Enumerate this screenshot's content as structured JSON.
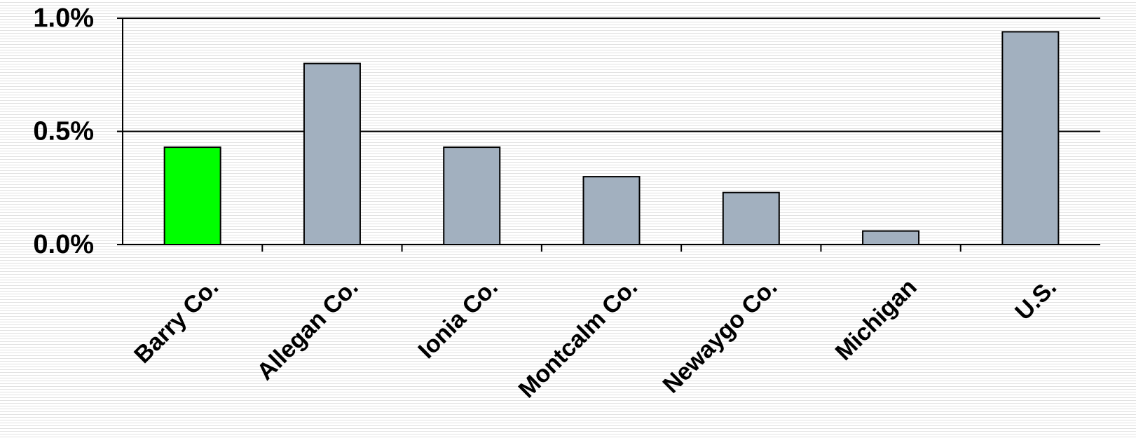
{
  "chart_data": {
    "type": "bar",
    "title": "",
    "xlabel": "",
    "ylabel": "",
    "categories": [
      "Barry Co.",
      "Allegan Co.",
      "Ionia Co.",
      "Montcalm Co.",
      "Newaygo Co.",
      "Michigan",
      "U.S."
    ],
    "values": [
      0.43,
      0.8,
      0.43,
      0.3,
      0.23,
      0.06,
      0.94
    ],
    "ylim": [
      0,
      1.0
    ],
    "yticks": [
      0.0,
      0.5,
      1.0
    ],
    "ytick_labels": [
      "0.0%",
      "0.5%",
      "1.0%"
    ],
    "value_unit": "%",
    "grid": true,
    "legend": "none",
    "colors": {
      "highlight": "#00ff00",
      "default": "#a2b0bf",
      "outline": "#000000"
    },
    "highlight_index": 0
  }
}
